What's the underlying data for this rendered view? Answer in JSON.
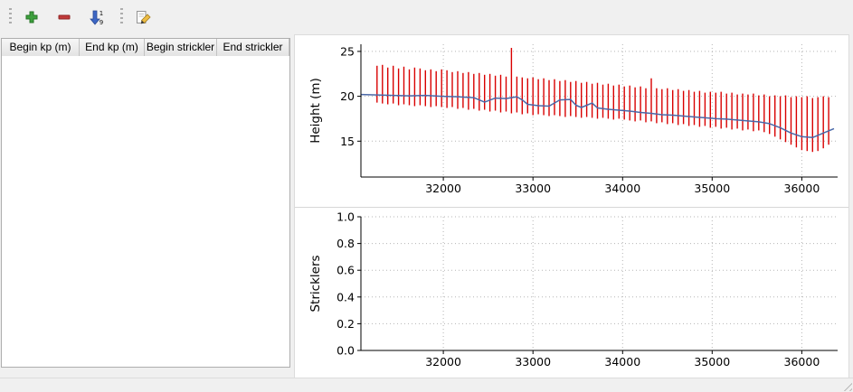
{
  "toolbar": {
    "buttons": [
      {
        "name": "add",
        "icon": "plus-icon"
      },
      {
        "name": "remove",
        "icon": "minus-icon"
      },
      {
        "name": "sort",
        "icon": "sort-1-9-icon"
      },
      {
        "name": "edit",
        "icon": "edit-pencil-icon"
      }
    ]
  },
  "table": {
    "columns": [
      "Begin kp (m)",
      "End kp (m)",
      "Begin strickler",
      "End strickler"
    ],
    "rows": []
  },
  "colors": {
    "bar_red": "#d90000",
    "line_blue": "#4a68a8",
    "grid": "#b5b5b5",
    "axis": "#000000"
  },
  "chart_data": [
    {
      "type": "line",
      "title": "",
      "xlabel": "",
      "ylabel": "Height (m)",
      "xlim": [
        31080,
        36400
      ],
      "ylim": [
        11,
        25.8
      ],
      "xticks": [
        32000,
        33000,
        34000,
        35000,
        36000
      ],
      "xticklabels": [
        "32000",
        "33000",
        "34000",
        "35000",
        "36000"
      ],
      "yticks": [
        15,
        20,
        25
      ],
      "yticklabels": [
        "15",
        "20",
        "25"
      ],
      "grid": true,
      "legend": false,
      "bars": {
        "color": "#d90000",
        "x": [
          31260,
          31320,
          31380,
          31440,
          31500,
          31560,
          31620,
          31680,
          31740,
          31800,
          31860,
          31920,
          31980,
          32040,
          32100,
          32160,
          32220,
          32280,
          32340,
          32400,
          32460,
          32520,
          32580,
          32640,
          32700,
          32760,
          32820,
          32880,
          32940,
          33000,
          33060,
          33120,
          33180,
          33240,
          33300,
          33360,
          33420,
          33480,
          33540,
          33600,
          33660,
          33720,
          33780,
          33840,
          33900,
          33960,
          34020,
          34080,
          34140,
          34200,
          34260,
          34320,
          34380,
          34440,
          34500,
          34560,
          34620,
          34680,
          34740,
          34800,
          34860,
          34920,
          34980,
          35040,
          35100,
          35160,
          35220,
          35280,
          35340,
          35400,
          35460,
          35520,
          35580,
          35640,
          35700,
          35760,
          35820,
          35880,
          35940,
          36000,
          36060,
          36120,
          36180,
          36240,
          36300
        ],
        "ymin": [
          19.3,
          19.2,
          19.1,
          19.2,
          19.0,
          19.1,
          19.0,
          18.9,
          19.0,
          18.9,
          18.8,
          18.9,
          18.8,
          18.7,
          18.8,
          18.6,
          18.7,
          18.5,
          18.6,
          18.4,
          18.5,
          18.3,
          18.4,
          18.2,
          18.3,
          18.1,
          18.2,
          18.0,
          18.1,
          17.9,
          18.0,
          17.9,
          17.8,
          17.9,
          17.8,
          17.7,
          17.8,
          17.7,
          17.6,
          17.7,
          17.6,
          17.5,
          17.6,
          17.5,
          17.4,
          17.5,
          17.4,
          17.3,
          17.2,
          17.3,
          17.1,
          17.2,
          17.0,
          17.1,
          16.9,
          17.0,
          16.8,
          16.9,
          16.7,
          16.8,
          16.6,
          16.7,
          16.5,
          16.6,
          16.4,
          16.5,
          16.3,
          16.4,
          16.2,
          16.3,
          16.1,
          16.2,
          16.0,
          15.8,
          15.5,
          15.2,
          14.9,
          14.6,
          14.3,
          14.0,
          13.9,
          13.8,
          13.9,
          14.2,
          14.6
        ],
        "ymax": [
          23.4,
          23.5,
          23.2,
          23.4,
          23.1,
          23.3,
          23.0,
          23.2,
          23.1,
          22.9,
          23.0,
          22.8,
          23.0,
          22.9,
          22.7,
          22.8,
          22.6,
          22.7,
          22.5,
          22.6,
          22.4,
          22.5,
          22.3,
          22.4,
          22.2,
          25.4,
          22.2,
          22.1,
          22.0,
          22.1,
          21.9,
          22.0,
          21.8,
          21.9,
          21.7,
          21.8,
          21.6,
          21.7,
          21.5,
          21.6,
          21.4,
          21.5,
          21.3,
          21.4,
          21.2,
          21.3,
          21.1,
          21.2,
          21.0,
          21.1,
          20.9,
          22.0,
          20.9,
          20.8,
          20.9,
          20.7,
          20.8,
          20.6,
          20.7,
          20.5,
          20.6,
          20.4,
          20.5,
          20.4,
          20.5,
          20.3,
          20.4,
          20.2,
          20.3,
          20.2,
          20.3,
          20.1,
          20.2,
          20.0,
          20.1,
          20.0,
          20.1,
          19.9,
          20.0,
          19.9,
          20.0,
          19.8,
          19.9,
          20.0,
          19.9
        ]
      },
      "line": {
        "color": "#4a68a8",
        "x": [
          31080,
          31260,
          31440,
          31620,
          31800,
          31980,
          32160,
          32340,
          32460,
          32580,
          32700,
          32820,
          32880,
          32940,
          33060,
          33180,
          33300,
          33420,
          33480,
          33540,
          33660,
          33720,
          33840,
          33960,
          34080,
          34200,
          34320,
          34440,
          34560,
          34680,
          34800,
          34920,
          35040,
          35160,
          35280,
          35400,
          35520,
          35640,
          35760,
          35880,
          36000,
          36120,
          36240,
          36360
        ],
        "y": [
          20.2,
          20.15,
          20.1,
          20.05,
          20.1,
          20.0,
          19.95,
          19.85,
          19.35,
          19.8,
          19.75,
          19.95,
          19.6,
          19.1,
          18.95,
          18.9,
          19.6,
          19.65,
          19.0,
          18.75,
          19.25,
          18.7,
          18.55,
          18.45,
          18.35,
          18.2,
          18.1,
          17.95,
          17.9,
          17.8,
          17.7,
          17.6,
          17.5,
          17.45,
          17.35,
          17.25,
          17.15,
          16.95,
          16.5,
          15.9,
          15.5,
          15.4,
          15.9,
          16.4
        ]
      }
    },
    {
      "type": "line",
      "title": "",
      "xlabel": "",
      "ylabel": "Stricklers",
      "xlim": [
        31080,
        36400
      ],
      "ylim": [
        0,
        1
      ],
      "xticks": [
        32000,
        33000,
        34000,
        35000,
        36000
      ],
      "xticklabels": [
        "32000",
        "33000",
        "34000",
        "35000",
        "36000"
      ],
      "yticks": [
        0,
        0.2,
        0.4,
        0.6,
        0.8,
        1.0
      ],
      "yticklabels": [
        "0.0",
        "0.2",
        "0.4",
        "0.6",
        "0.8",
        "1.0"
      ],
      "grid": true,
      "legend": false,
      "series": []
    }
  ]
}
